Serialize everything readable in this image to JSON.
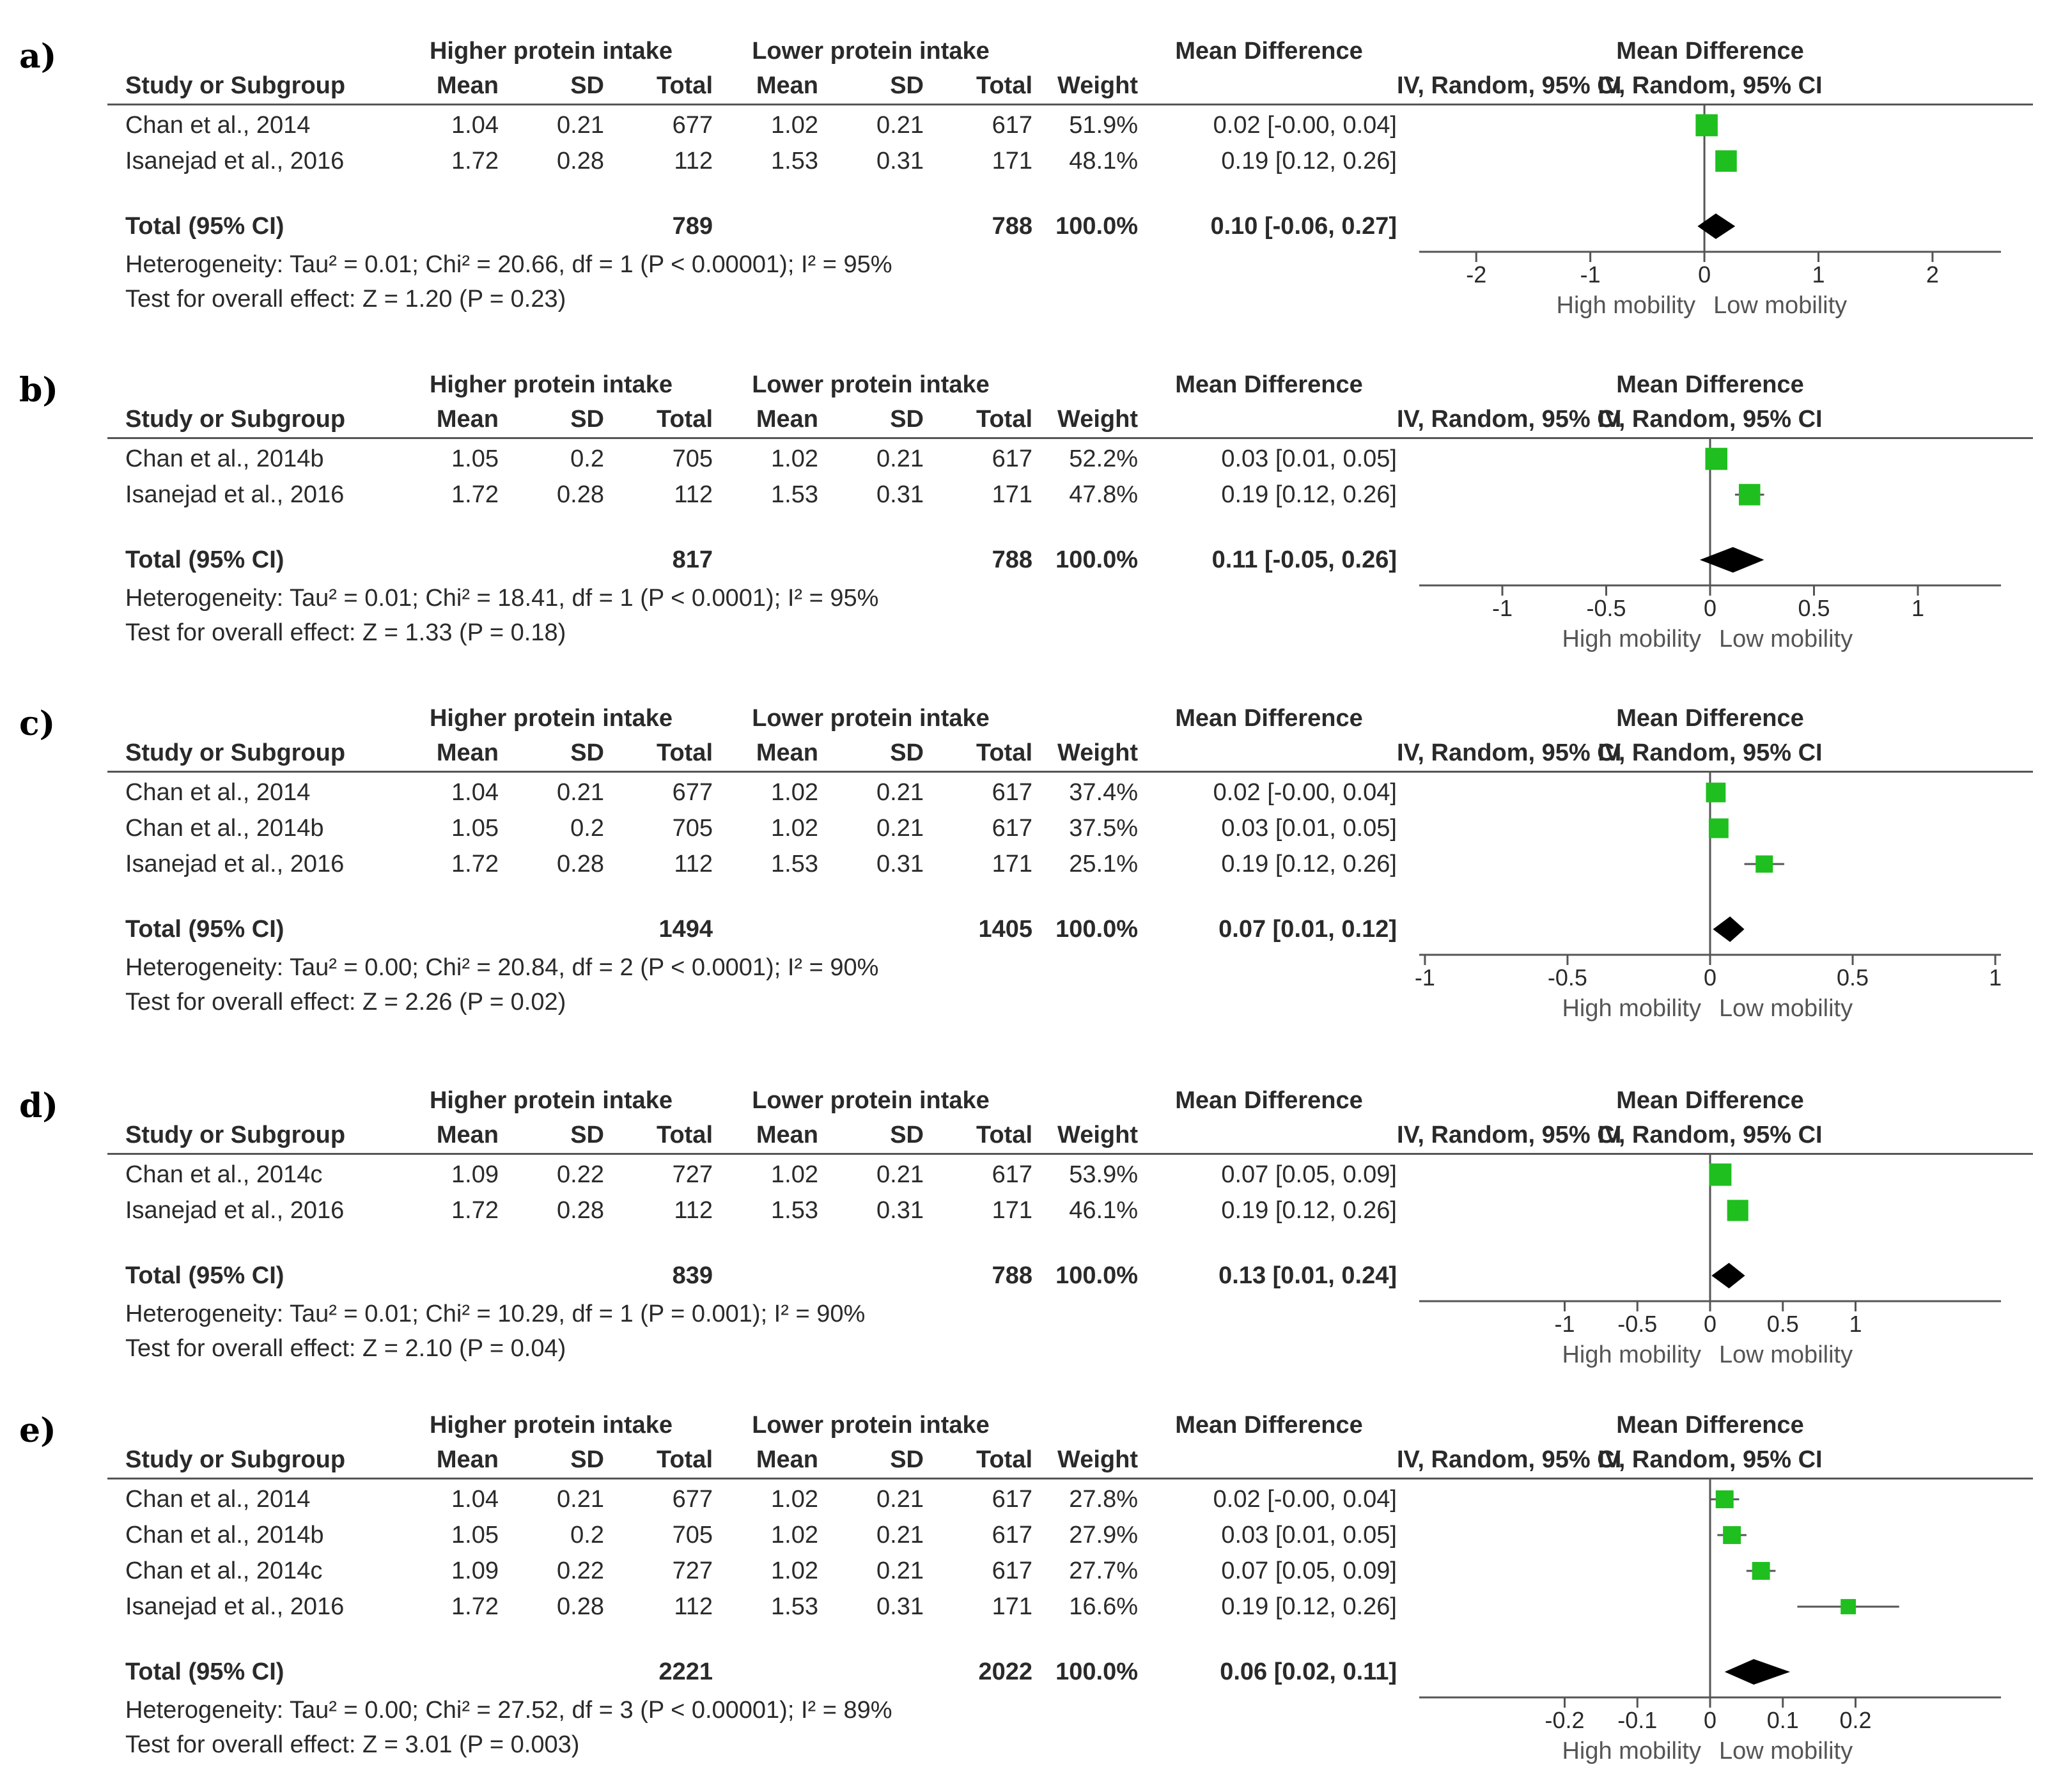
{
  "headers": {
    "group1": "Higher protein intake",
    "group2": "Lower protein intake",
    "study": "Study or Subgroup",
    "mean": "Mean",
    "sd": "SD",
    "total": "Total",
    "weight": "Weight",
    "md_title": "Mean Difference",
    "md_method": "IV, Random, 95% CI",
    "favours_left": "High mobility",
    "favours_right": "Low mobility"
  },
  "colors": {
    "square": "#1fbf1f",
    "diamond": "#000000",
    "lines": "#555555"
  },
  "chart_data": [
    {
      "type": "table",
      "letter": "a)",
      "xlim": [
        -2.5,
        2.6
      ],
      "ticks": [
        -2,
        -1,
        0,
        1,
        2
      ],
      "tick_labels": [
        "-2",
        "-1",
        "0",
        "1",
        "2"
      ],
      "rows": [
        {
          "study": "Chan et al., 2014",
          "m1": "1.04",
          "sd1": "0.21",
          "n1": "677",
          "m2": "1.02",
          "sd2": "0.21",
          "n2": "617",
          "weight": "51.9%",
          "ci": "0.02 [-0.00, 0.04]",
          "md": 0.02,
          "lo": 0.0,
          "hi": 0.04,
          "w": 51.9
        },
        {
          "study": "Isanejad et al., 2016",
          "m1": "1.72",
          "sd1": "0.28",
          "n1": "112",
          "m2": "1.53",
          "sd2": "0.31",
          "n2": "171",
          "weight": "48.1%",
          "ci": "0.19 [0.12, 0.26]",
          "md": 0.19,
          "lo": 0.12,
          "hi": 0.26,
          "w": 48.1
        }
      ],
      "total": {
        "label": "Total (95% CI)",
        "n1": "789",
        "n2": "788",
        "weight": "100.0%",
        "ci": "0.10 [-0.06, 0.27]",
        "md": 0.1,
        "lo": -0.06,
        "hi": 0.27
      },
      "heterogeneity": "Heterogeneity: Tau² = 0.01; Chi² = 20.66, df = 1 (P < 0.00001); I² = 95%",
      "overall": "Test for overall effect: Z = 1.20 (P = 0.23)"
    },
    {
      "type": "table",
      "letter": "b)",
      "xlim": [
        -1.4,
        1.4
      ],
      "ticks": [
        -1,
        -0.5,
        0,
        0.5,
        1
      ],
      "tick_labels": [
        "-1",
        "-0.5",
        "0",
        "0.5",
        "1"
      ],
      "rows": [
        {
          "study": "Chan et al., 2014b",
          "m1": "1.05",
          "sd1": "0.2",
          "n1": "705",
          "m2": "1.02",
          "sd2": "0.21",
          "n2": "617",
          "weight": "52.2%",
          "ci": "0.03 [0.01, 0.05]",
          "md": 0.03,
          "lo": 0.01,
          "hi": 0.05,
          "w": 52.2
        },
        {
          "study": "Isanejad et al., 2016",
          "m1": "1.72",
          "sd1": "0.28",
          "n1": "112",
          "m2": "1.53",
          "sd2": "0.31",
          "n2": "171",
          "weight": "47.8%",
          "ci": "0.19 [0.12, 0.26]",
          "md": 0.19,
          "lo": 0.12,
          "hi": 0.26,
          "w": 47.8
        }
      ],
      "total": {
        "label": "Total (95% CI)",
        "n1": "817",
        "n2": "788",
        "weight": "100.0%",
        "ci": "0.11 [-0.05, 0.26]",
        "md": 0.11,
        "lo": -0.05,
        "hi": 0.26
      },
      "heterogeneity": "Heterogeneity: Tau² = 0.01; Chi² = 18.41, df = 1 (P < 0.0001); I² = 95%",
      "overall": "Test for overall effect: Z = 1.33 (P = 0.18)"
    },
    {
      "type": "table",
      "letter": "c)",
      "xlim": [
        -1.02,
        1.02
      ],
      "ticks": [
        -1,
        -0.5,
        0,
        0.5,
        1
      ],
      "tick_labels": [
        "-1",
        "-0.5",
        "0",
        "0.5",
        "1"
      ],
      "rows": [
        {
          "study": "Chan et al., 2014",
          "m1": "1.04",
          "sd1": "0.21",
          "n1": "677",
          "m2": "1.02",
          "sd2": "0.21",
          "n2": "617",
          "weight": "37.4%",
          "ci": "0.02 [-0.00, 0.04]",
          "md": 0.02,
          "lo": 0.0,
          "hi": 0.04,
          "w": 37.4
        },
        {
          "study": "Chan et al., 2014b",
          "m1": "1.05",
          "sd1": "0.2",
          "n1": "705",
          "m2": "1.02",
          "sd2": "0.21",
          "n2": "617",
          "weight": "37.5%",
          "ci": "0.03 [0.01, 0.05]",
          "md": 0.03,
          "lo": 0.01,
          "hi": 0.05,
          "w": 37.5
        },
        {
          "study": "Isanejad et al., 2016",
          "m1": "1.72",
          "sd1": "0.28",
          "n1": "112",
          "m2": "1.53",
          "sd2": "0.31",
          "n2": "171",
          "weight": "25.1%",
          "ci": "0.19 [0.12, 0.26]",
          "md": 0.19,
          "lo": 0.12,
          "hi": 0.26,
          "w": 25.1
        }
      ],
      "total": {
        "label": "Total (95% CI)",
        "n1": "1494",
        "n2": "1405",
        "weight": "100.0%",
        "ci": "0.07 [0.01, 0.12]",
        "md": 0.07,
        "lo": 0.01,
        "hi": 0.12
      },
      "heterogeneity": "Heterogeneity: Tau² = 0.00; Chi² = 20.84, df = 2 (P < 0.0001); I² = 90%",
      "overall": "Test for overall effect: Z = 2.26 (P = 0.02)"
    },
    {
      "type": "table",
      "letter": "d)",
      "xlim": [
        -2.0,
        2.0
      ],
      "ticks": [
        -1,
        -0.5,
        0,
        0.5,
        1
      ],
      "tick_labels": [
        "-1",
        "-0.5",
        "0",
        "0.5",
        "1"
      ],
      "rows": [
        {
          "study": "Chan et al., 2014c",
          "m1": "1.09",
          "sd1": "0.22",
          "n1": "727",
          "m2": "1.02",
          "sd2": "0.21",
          "n2": "617",
          "weight": "53.9%",
          "ci": "0.07 [0.05, 0.09]",
          "md": 0.07,
          "lo": 0.05,
          "hi": 0.09,
          "w": 53.9
        },
        {
          "study": "Isanejad et al., 2016",
          "m1": "1.72",
          "sd1": "0.28",
          "n1": "112",
          "m2": "1.53",
          "sd2": "0.31",
          "n2": "171",
          "weight": "46.1%",
          "ci": "0.19 [0.12, 0.26]",
          "md": 0.19,
          "lo": 0.12,
          "hi": 0.26,
          "w": 46.1
        }
      ],
      "total": {
        "label": "Total (95% CI)",
        "n1": "839",
        "n2": "788",
        "weight": "100.0%",
        "ci": "0.13 [0.01, 0.24]",
        "md": 0.13,
        "lo": 0.01,
        "hi": 0.24
      },
      "heterogeneity": "Heterogeneity: Tau² = 0.01; Chi² = 10.29, df = 1 (P = 0.001); I² = 90%",
      "overall": "Test for overall effect: Z = 2.10 (P = 0.04)"
    },
    {
      "type": "table",
      "letter": "e)",
      "xlim": [
        -0.4,
        0.4
      ],
      "ticks": [
        -0.2,
        -0.1,
        0,
        0.1,
        0.2
      ],
      "tick_labels": [
        "-0.2",
        "-0.1",
        "0",
        "0.1",
        "0.2"
      ],
      "rows": [
        {
          "study": "Chan et al., 2014",
          "m1": "1.04",
          "sd1": "0.21",
          "n1": "677",
          "m2": "1.02",
          "sd2": "0.21",
          "n2": "617",
          "weight": "27.8%",
          "ci": "0.02 [-0.00, 0.04]",
          "md": 0.02,
          "lo": 0.0,
          "hi": 0.04,
          "w": 27.8
        },
        {
          "study": "Chan et al., 2014b",
          "m1": "1.05",
          "sd1": "0.2",
          "n1": "705",
          "m2": "1.02",
          "sd2": "0.21",
          "n2": "617",
          "weight": "27.9%",
          "ci": "0.03 [0.01, 0.05]",
          "md": 0.03,
          "lo": 0.01,
          "hi": 0.05,
          "w": 27.9
        },
        {
          "study": "Chan et al., 2014c",
          "m1": "1.09",
          "sd1": "0.22",
          "n1": "727",
          "m2": "1.02",
          "sd2": "0.21",
          "n2": "617",
          "weight": "27.7%",
          "ci": "0.07 [0.05, 0.09]",
          "md": 0.07,
          "lo": 0.05,
          "hi": 0.09,
          "w": 27.7
        },
        {
          "study": "Isanejad et al., 2016",
          "m1": "1.72",
          "sd1": "0.28",
          "n1": "112",
          "m2": "1.53",
          "sd2": "0.31",
          "n2": "171",
          "weight": "16.6%",
          "ci": "0.19 [0.12, 0.26]",
          "md": 0.19,
          "lo": 0.12,
          "hi": 0.26,
          "w": 16.6
        }
      ],
      "total": {
        "label": "Total (95% CI)",
        "n1": "2221",
        "n2": "2022",
        "weight": "100.0%",
        "ci": "0.06 [0.02, 0.11]",
        "md": 0.06,
        "lo": 0.02,
        "hi": 0.11
      },
      "heterogeneity": "Heterogeneity: Tau² = 0.00; Chi² = 27.52, df = 3 (P < 0.00001); I² = 89%",
      "overall": "Test for overall effect: Z = 3.01 (P = 0.003)"
    }
  ]
}
